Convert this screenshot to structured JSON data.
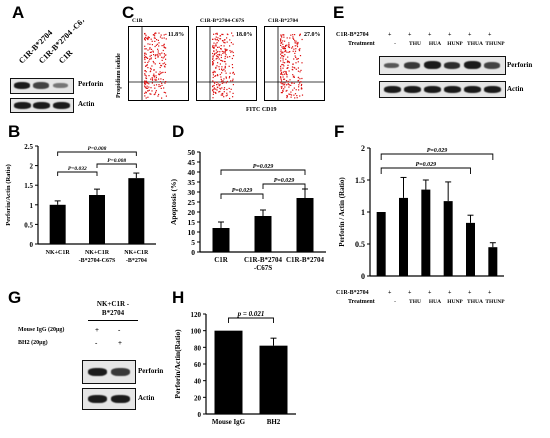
{
  "panels": {
    "A": {
      "label": "A",
      "lanes": [
        "C1R-B*2704",
        "C1R-B*2704 -C67S",
        "C1R"
      ],
      "rows": [
        "Perforin",
        "Actin"
      ]
    },
    "B": {
      "label": "B",
      "ylabel": "Perforin/Actin (Ratio)",
      "chart_data": {
        "type": "bar",
        "categories": [
          "NK+C1R",
          "NK+C1R -B*2704-C67S",
          "NK+C1R -B*2704"
        ],
        "values": [
          1.0,
          1.25,
          1.68
        ],
        "errors": [
          0.1,
          0.15,
          0.13
        ],
        "ylim": [
          0,
          2.5
        ],
        "yticks": [
          "0",
          "0.5",
          "1",
          "1.5",
          "2",
          "2.5"
        ],
        "ylabel": "Perforin/Actin (Ratio)",
        "annotations": [
          "P=0.008",
          "P=0.032",
          "P=0.008"
        ]
      }
    },
    "C": {
      "label": "C",
      "ylabel": "Propidium iodide",
      "xlabel": "FITC CD19",
      "plots": [
        {
          "title": "C1R",
          "percent": "11.8%"
        },
        {
          "title": "C1R-B*2704-C67S",
          "percent": "18.0%"
        },
        {
          "title": "C1R-B*2704",
          "percent": "27.0%"
        }
      ]
    },
    "D": {
      "label": "D",
      "chart_data": {
        "type": "bar",
        "categories": [
          "C1R",
          "C1R-B*2704 -C67S",
          "C1R-B*2704"
        ],
        "values": [
          12,
          18,
          27
        ],
        "errors": [
          3,
          3,
          4.5
        ],
        "ylim": [
          0,
          50
        ],
        "yticks": [
          "0",
          "5",
          "10",
          "15",
          "20",
          "25",
          "30",
          "35",
          "40",
          "45",
          "50"
        ],
        "ylabel": "Apoptosis (%)",
        "annotations": [
          "P=0.029",
          "P=0.029",
          "P=0.029"
        ]
      }
    },
    "E": {
      "label": "E",
      "row1_label": "C1R-B*2704",
      "row2_label": "Treatment",
      "signs": [
        "+",
        "+",
        "+",
        "+",
        "+",
        "+"
      ],
      "treatments": [
        "-",
        "THU",
        "HUA",
        "HUNP",
        "THUA",
        "THUNP"
      ],
      "rows": [
        "Perforin",
        "Actin"
      ]
    },
    "F": {
      "label": "F",
      "row1_label": "C1R-B*2704",
      "row2_label": "Treatment",
      "signs": [
        "+",
        "+",
        "+",
        "+",
        "+",
        "+"
      ],
      "chart_data": {
        "type": "bar",
        "categories": [
          "-",
          "THU",
          "HUA",
          "HUNP",
          "THUA",
          "THUNP"
        ],
        "values": [
          1.0,
          1.22,
          1.35,
          1.17,
          0.83,
          0.45
        ],
        "errors": [
          0,
          0.32,
          0.15,
          0.3,
          0.12,
          0.07
        ],
        "ylim": [
          0,
          2
        ],
        "yticks": [
          "0",
          "0.5",
          "1",
          "1.5",
          "2"
        ],
        "ylabel": "Perforin / Actin (Ratio)",
        "annotations": [
          "P=0.029",
          "P=0.029"
        ]
      }
    },
    "G": {
      "label": "G",
      "header": "NK+C1R -B*2704",
      "row1_label": "Mouse IgG (20μg)",
      "row2_label": "BH2 (20μg)",
      "row1_signs": [
        "+",
        "-"
      ],
      "row2_signs": [
        "-",
        "+"
      ],
      "rows": [
        "Perforin",
        "Actin"
      ]
    },
    "H": {
      "label": "H",
      "chart_data": {
        "type": "bar",
        "categories": [
          "Mouse IgG",
          "BH2"
        ],
        "values": [
          100,
          82
        ],
        "errors": [
          0,
          9
        ],
        "ylim": [
          0,
          120
        ],
        "yticks": [
          "0",
          "20",
          "40",
          "60",
          "80",
          "100",
          "120"
        ],
        "ylabel": "Perforin/Actin(Ratio)",
        "annotations": [
          "p = 0.021"
        ]
      }
    }
  }
}
